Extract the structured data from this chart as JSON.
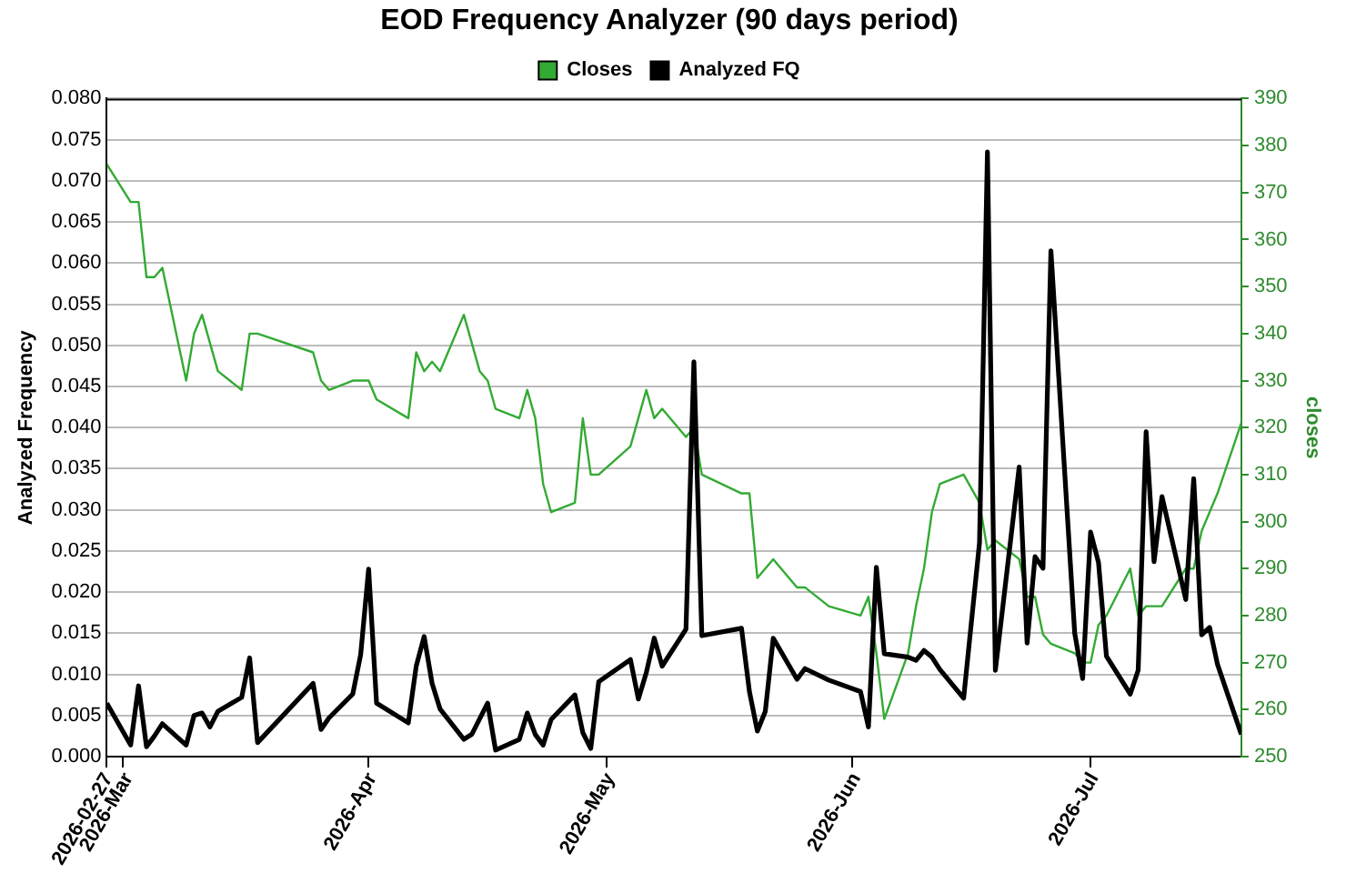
{
  "chart_data": {
    "type": "line",
    "title": "EOD Frequency Analyzer (90 days period)",
    "ylabel": "Analyzed Frequency",
    "y2label": "closes",
    "x": [
      "2026-02-27",
      "2026-03-02",
      "2026-03-03",
      "2026-03-04",
      "2026-03-05",
      "2026-03-06",
      "2026-03-09",
      "2026-03-10",
      "2026-03-11",
      "2026-03-12",
      "2026-03-13",
      "2026-03-16",
      "2026-03-17",
      "2026-03-18",
      "2026-03-25",
      "2026-03-26",
      "2026-03-27",
      "2026-03-30",
      "2026-03-31",
      "2026-04-01",
      "2026-04-02",
      "2026-04-06",
      "2026-04-07",
      "2026-04-08",
      "2026-04-09",
      "2026-04-10",
      "2026-04-13",
      "2026-04-14",
      "2026-04-15",
      "2026-04-16",
      "2026-04-17",
      "2026-04-20",
      "2026-04-21",
      "2026-04-22",
      "2026-04-23",
      "2026-04-24",
      "2026-04-27",
      "2026-04-28",
      "2026-04-29",
      "2026-04-30",
      "2026-05-04",
      "2026-05-05",
      "2026-05-06",
      "2026-05-07",
      "2026-05-08",
      "2026-05-11",
      "2026-05-12",
      "2026-05-13",
      "2026-05-18",
      "2026-05-19",
      "2026-05-20",
      "2026-05-21",
      "2026-05-22",
      "2026-05-25",
      "2026-05-26",
      "2026-05-29",
      "2026-06-02",
      "2026-06-03",
      "2026-06-04",
      "2026-06-05",
      "2026-06-08",
      "2026-06-09",
      "2026-06-10",
      "2026-06-11",
      "2026-06-12",
      "2026-06-15",
      "2026-06-17",
      "2026-06-18",
      "2026-06-19",
      "2026-06-22",
      "2026-06-23",
      "2026-06-24",
      "2026-06-25",
      "2026-06-26",
      "2026-06-29",
      "2026-06-30",
      "2026-07-01",
      "2026-07-02",
      "2026-07-03",
      "2026-07-06",
      "2026-07-07",
      "2026-07-08",
      "2026-07-09",
      "2026-07-10",
      "2026-07-13",
      "2026-07-14",
      "2026-07-15",
      "2026-07-16",
      "2026-07-17",
      "2026-07-20"
    ],
    "series": [
      {
        "name": "Closes",
        "color": "#33aa33",
        "axis": "y2",
        "values": [
          376,
          368,
          368,
          352,
          352,
          354,
          330,
          340,
          344,
          338,
          332,
          328,
          340,
          340,
          336,
          330,
          328,
          330,
          330,
          330,
          326,
          322,
          336,
          332,
          334,
          332,
          344,
          338,
          332,
          330,
          324,
          322,
          328,
          322,
          308,
          302,
          304,
          322,
          310,
          310,
          316,
          322,
          328,
          322,
          324,
          318,
          320,
          310,
          306,
          306,
          288,
          290,
          292,
          286,
          286,
          282,
          280,
          284,
          272,
          258,
          272,
          282,
          290,
          302,
          308,
          310,
          304,
          294,
          296,
          292,
          284,
          284,
          276,
          274,
          272,
          270,
          270,
          278,
          280,
          290,
          280,
          282,
          282,
          282,
          290,
          290,
          298,
          302,
          306,
          321
        ]
      },
      {
        "name": "Analyzed FQ",
        "color": "#000000",
        "values": [
          0.0065,
          0.0014,
          0.0086,
          0.0012,
          0.0025,
          0.004,
          0.0014,
          0.005,
          0.0053,
          0.0036,
          0.0055,
          0.0072,
          0.012,
          0.0017,
          0.0089,
          0.0033,
          0.0047,
          0.0076,
          0.0124,
          0.0228,
          0.0065,
          0.0041,
          0.011,
          0.0146,
          0.0089,
          0.0058,
          0.0021,
          0.0027,
          0.0046,
          0.0065,
          0.0008,
          0.0021,
          0.0053,
          0.0027,
          0.0014,
          0.0045,
          0.0075,
          0.0029,
          0.001,
          0.0091,
          0.0118,
          0.007,
          0.0102,
          0.0144,
          0.011,
          0.0155,
          0.048,
          0.0147,
          0.0156,
          0.0079,
          0.0031,
          0.0055,
          0.0144,
          0.0094,
          0.0107,
          0.0093,
          0.0079,
          0.0036,
          0.023,
          0.0125,
          0.0121,
          0.0117,
          0.0129,
          0.0121,
          0.0106,
          0.0071,
          0.026,
          0.0735,
          0.0105,
          0.0352,
          0.0138,
          0.0243,
          0.0229,
          0.0615,
          0.015,
          0.0095,
          0.0273,
          0.0236,
          0.0122,
          0.0076,
          0.0105,
          0.0395,
          0.0237,
          0.0316,
          0.0191,
          0.0338,
          0.0148,
          0.0157,
          0.0112,
          0.0027
        ]
      }
    ],
    "xlim": [
      "2026-02-27",
      "2026-07-20"
    ],
    "xticks": [
      {
        "value": "2026-02-27",
        "label": "2026-02-27"
      },
      {
        "value": "2026-03-01",
        "label": "2026-Mar"
      },
      {
        "value": "2026-04-01",
        "label": "2026-Apr"
      },
      {
        "value": "2026-05-01",
        "label": "2026-May"
      },
      {
        "value": "2026-06-01",
        "label": "2026-Jun"
      },
      {
        "value": "2026-07-01",
        "label": "2026-Jul"
      }
    ],
    "ylim": [
      0,
      0.08
    ],
    "yticks": [
      {
        "value": 0,
        "label": "0.000"
      },
      {
        "value": 0.005,
        "label": "0.005"
      },
      {
        "value": 0.01,
        "label": "0.010"
      },
      {
        "value": 0.015,
        "label": "0.015"
      },
      {
        "value": 0.02,
        "label": "0.020"
      },
      {
        "value": 0.025,
        "label": "0.025"
      },
      {
        "value": 0.03,
        "label": "0.030"
      },
      {
        "value": 0.035,
        "label": "0.035"
      },
      {
        "value": 0.04,
        "label": "0.040"
      },
      {
        "value": 0.045,
        "label": "0.045"
      },
      {
        "value": 0.05,
        "label": "0.050"
      },
      {
        "value": 0.055,
        "label": "0.055"
      },
      {
        "value": 0.06,
        "label": "0.060"
      },
      {
        "value": 0.065,
        "label": "0.065"
      },
      {
        "value": 0.07,
        "label": "0.070"
      },
      {
        "value": 0.075,
        "label": "0.075"
      },
      {
        "value": 0.08,
        "label": "0.080"
      }
    ],
    "y2lim": [
      250,
      390
    ],
    "y2ticks": [
      250,
      260,
      270,
      280,
      290,
      300,
      310,
      320,
      330,
      340,
      350,
      360,
      370,
      380,
      390
    ],
    "grid": "y",
    "legend": "top",
    "marker": "none",
    "line_style": "solid"
  }
}
